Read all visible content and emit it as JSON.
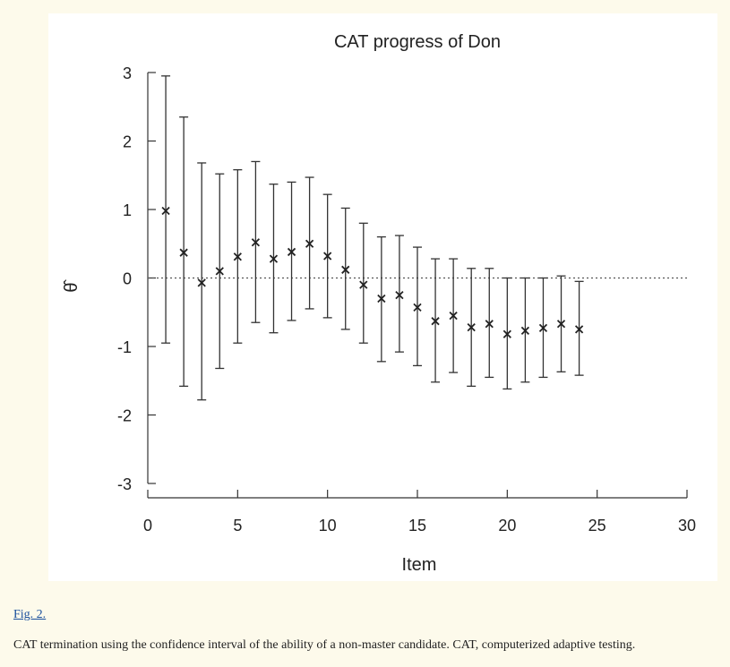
{
  "figure": {
    "label": "Fig. 2.",
    "caption": "CAT termination using the confidence interval of the ability of a non-master candidate. CAT, computerized adaptive testing."
  },
  "chart_data": {
    "type": "scatter",
    "title": "CAT progress of Don",
    "xlabel": "Item",
    "ylabel": "θ̂",
    "xlim": [
      0,
      30
    ],
    "ylim": [
      -3,
      3
    ],
    "xticks": [
      0,
      5,
      10,
      15,
      20,
      25,
      30
    ],
    "yticks": [
      3,
      2,
      1,
      0,
      -1,
      -2,
      -3
    ],
    "reference_line": {
      "y": 0,
      "style": "dotted"
    },
    "series": [
      {
        "marker": "x",
        "x": [
          1,
          2,
          3,
          4,
          5,
          6,
          7,
          8,
          9,
          10,
          11,
          12,
          13,
          14,
          15,
          16,
          17,
          18,
          19,
          20,
          21,
          22,
          23,
          24
        ],
        "y": [
          0.98,
          0.37,
          -0.07,
          0.1,
          0.31,
          0.52,
          0.28,
          0.38,
          0.5,
          0.32,
          0.12,
          -0.1,
          -0.3,
          -0.25,
          -0.43,
          -0.63,
          -0.55,
          -0.72,
          -0.67,
          -0.82,
          -0.77,
          -0.73,
          -0.67,
          -0.75
        ],
        "lower": [
          -0.95,
          -1.58,
          -1.78,
          -1.32,
          -0.95,
          -0.65,
          -0.8,
          -0.62,
          -0.45,
          -0.58,
          -0.75,
          -0.95,
          -1.22,
          -1.08,
          -1.28,
          -1.52,
          -1.38,
          -1.58,
          -1.45,
          -1.62,
          -1.52,
          -1.45,
          -1.37,
          -1.42
        ],
        "upper": [
          2.95,
          2.35,
          1.68,
          1.52,
          1.58,
          1.7,
          1.37,
          1.4,
          1.47,
          1.22,
          1.02,
          0.8,
          0.6,
          0.62,
          0.45,
          0.28,
          0.28,
          0.14,
          0.14,
          0.0,
          0.0,
          0.0,
          0.03,
          -0.05
        ]
      }
    ]
  }
}
